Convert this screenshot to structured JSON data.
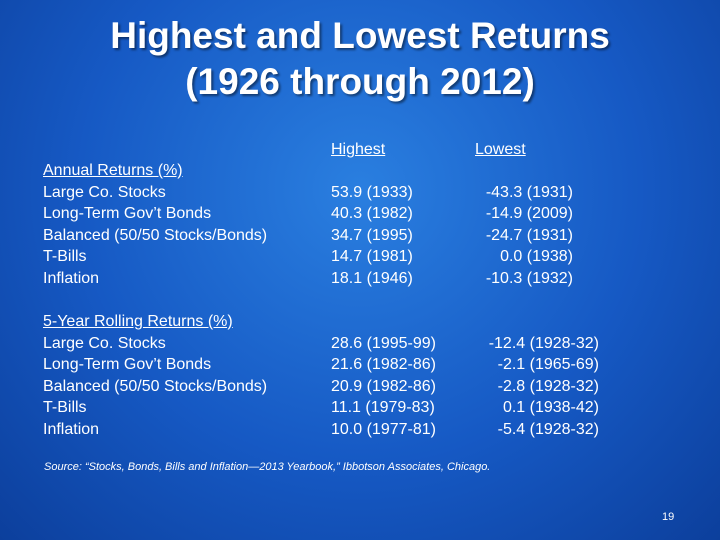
{
  "title": {
    "lines": [
      "Highest and Lowest Returns",
      "(1926 through 2012)"
    ]
  },
  "columns": [
    "Highest",
    "Lowest"
  ],
  "sections": [
    {
      "heading": "Annual Returns (%)",
      "rows": [
        {
          "label": "Large Co. Stocks",
          "highest": "53.9 (1933)",
          "lowest": "-43.3 (1931)"
        },
        {
          "label": "Long-Term Gov’t Bonds",
          "highest": "40.3 (1982)",
          "lowest": "-14.9 (2009)"
        },
        {
          "label": "Balanced (50/50 Stocks/Bonds)",
          "highest": "34.7 (1995)",
          "lowest": "-24.7 (1931)"
        },
        {
          "label": "T-Bills",
          "highest": "14.7 (1981)",
          "lowest": "0.0 (1938)"
        },
        {
          "label": "Inflation",
          "highest": "18.1 (1946)",
          "lowest": "-10.3 (1932)"
        }
      ]
    },
    {
      "heading": "5-Year Rolling Returns (%)",
      "rows": [
        {
          "label": "Large Co. Stocks",
          "highest": "28.6 (1995-99)",
          "lowest": "-12.4 (1928-32)"
        },
        {
          "label": "Long-Term Gov’t Bonds",
          "highest": "21.6 (1982-86)",
          "lowest": "-2.1 (1965-69)"
        },
        {
          "label": "Balanced (50/50 Stocks/Bonds)",
          "highest": "20.9 (1982-86)",
          "lowest": "-2.8 (1928-32)"
        },
        {
          "label": "T-Bills",
          "highest": "11.1 (1979-83)",
          "lowest": "0.1 (1938-42)"
        },
        {
          "label": "Inflation",
          "highest": "10.0 (1977-81)",
          "lowest": "-5.4 (1928-32)"
        }
      ]
    }
  ],
  "source": "Source: “Stocks, Bonds, Bills and Inflation—2013 Yearbook,” Ibbotson Associates, Chicago.",
  "page_number": "19"
}
